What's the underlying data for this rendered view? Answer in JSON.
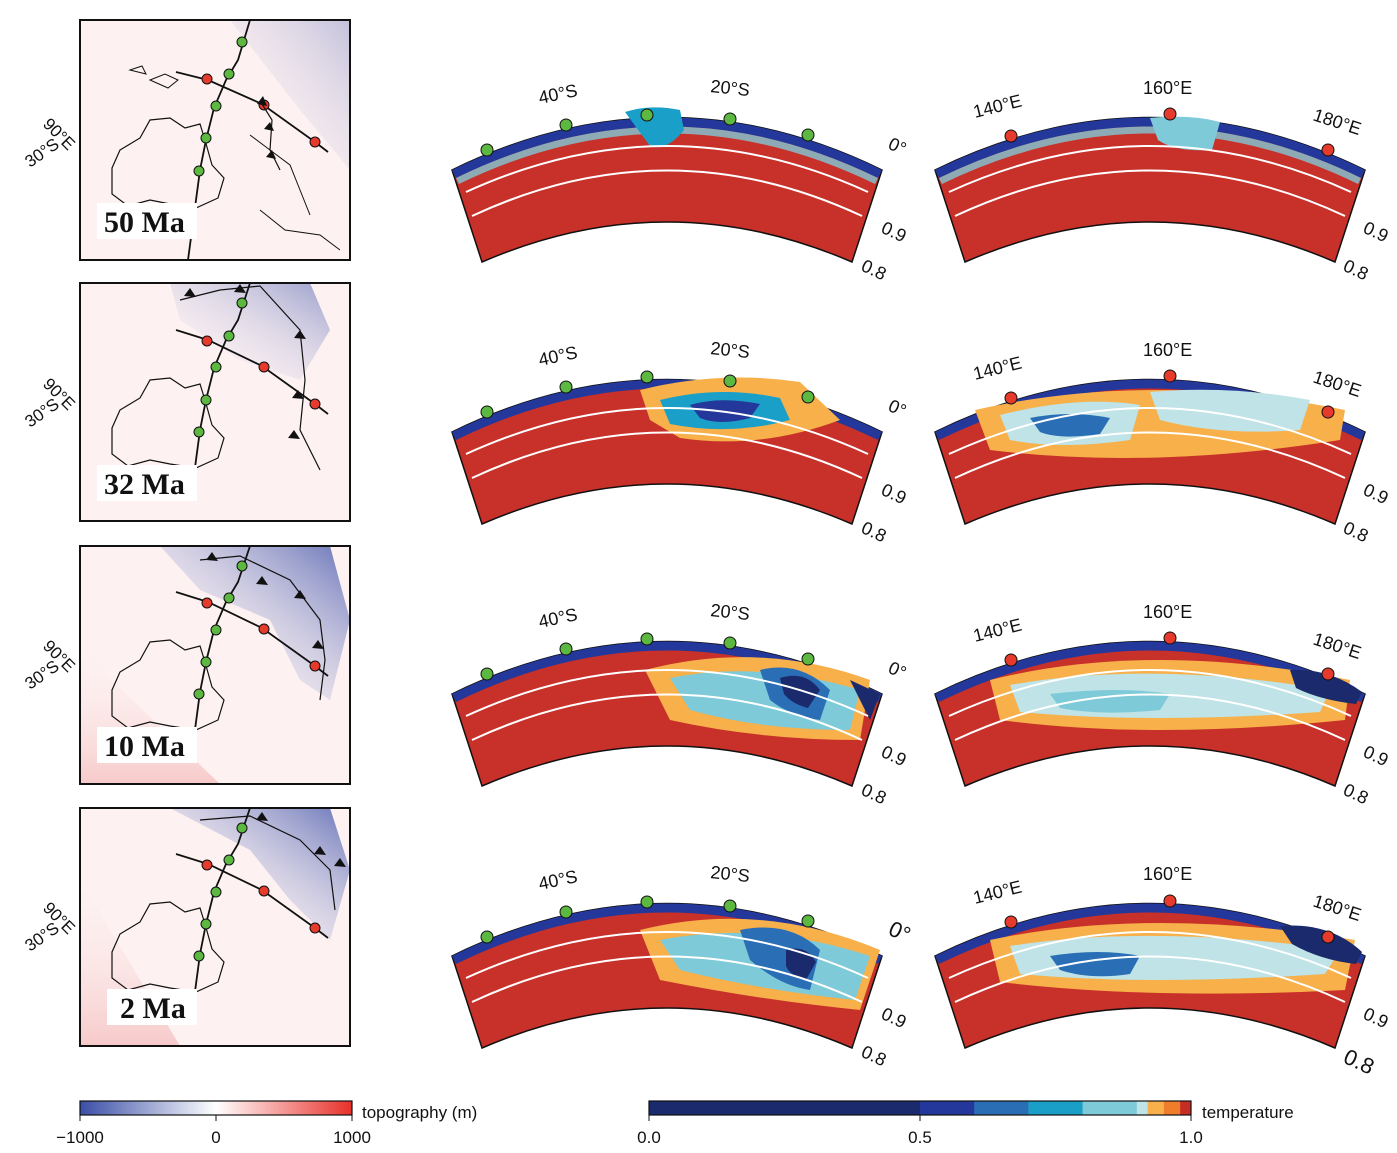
{
  "rows": [
    {
      "age": "50 Ma",
      "lat_label": "30°S",
      "lon_label": "90°E",
      "depth_mid": "0.9",
      "depth_bottom": "0.8",
      "top_label_a": "0°"
    },
    {
      "age": "32 Ma",
      "lat_label": "30°S",
      "lon_label": "90°E",
      "depth_mid": "0.9",
      "depth_bottom": "0.8",
      "top_label_a": "0°"
    },
    {
      "age": "10 Ma",
      "lat_label": "30°S",
      "lon_label": "90°E",
      "depth_mid": "0.9",
      "depth_bottom": "0.8",
      "top_label_a": "0°"
    },
    {
      "age": "2 Ma",
      "lat_label": "30°S",
      "lon_label": "90°E",
      "depth_mid": "0.9",
      "depth_bottom": "0.8",
      "top_label_a": "0°"
    }
  ],
  "section_a": {
    "tick1": "40°S",
    "tick2": "20°S"
  },
  "section_b": {
    "tick1": "140°E",
    "tick2": "160°E",
    "tick3": "180°E"
  },
  "colorbar_topo": {
    "label": "topography (m)",
    "ticks": [
      "−1000",
      "0",
      "1000"
    ],
    "range": [
      -1000,
      1000
    ],
    "colors_low": "#3a4ea6",
    "colors_mid": "#ffffff",
    "colors_high": "#e8302a"
  },
  "colorbar_temp": {
    "label": "temperature",
    "ticks": [
      "0.0",
      "0.5",
      "1.0"
    ],
    "range": [
      0.0,
      1.0
    ],
    "colors": [
      "#1a2a6c",
      "#23389a",
      "#2a6fb5",
      "#1aa0c8",
      "#7fcad8",
      "#bfe3e6",
      "#f7b04a",
      "#ef7d2c",
      "#c62d23"
    ]
  },
  "markers": {
    "green": "#5cb840",
    "red": "#e53a2c"
  },
  "colors": {
    "mantle": "#c8302a",
    "frame": "#111111"
  }
}
